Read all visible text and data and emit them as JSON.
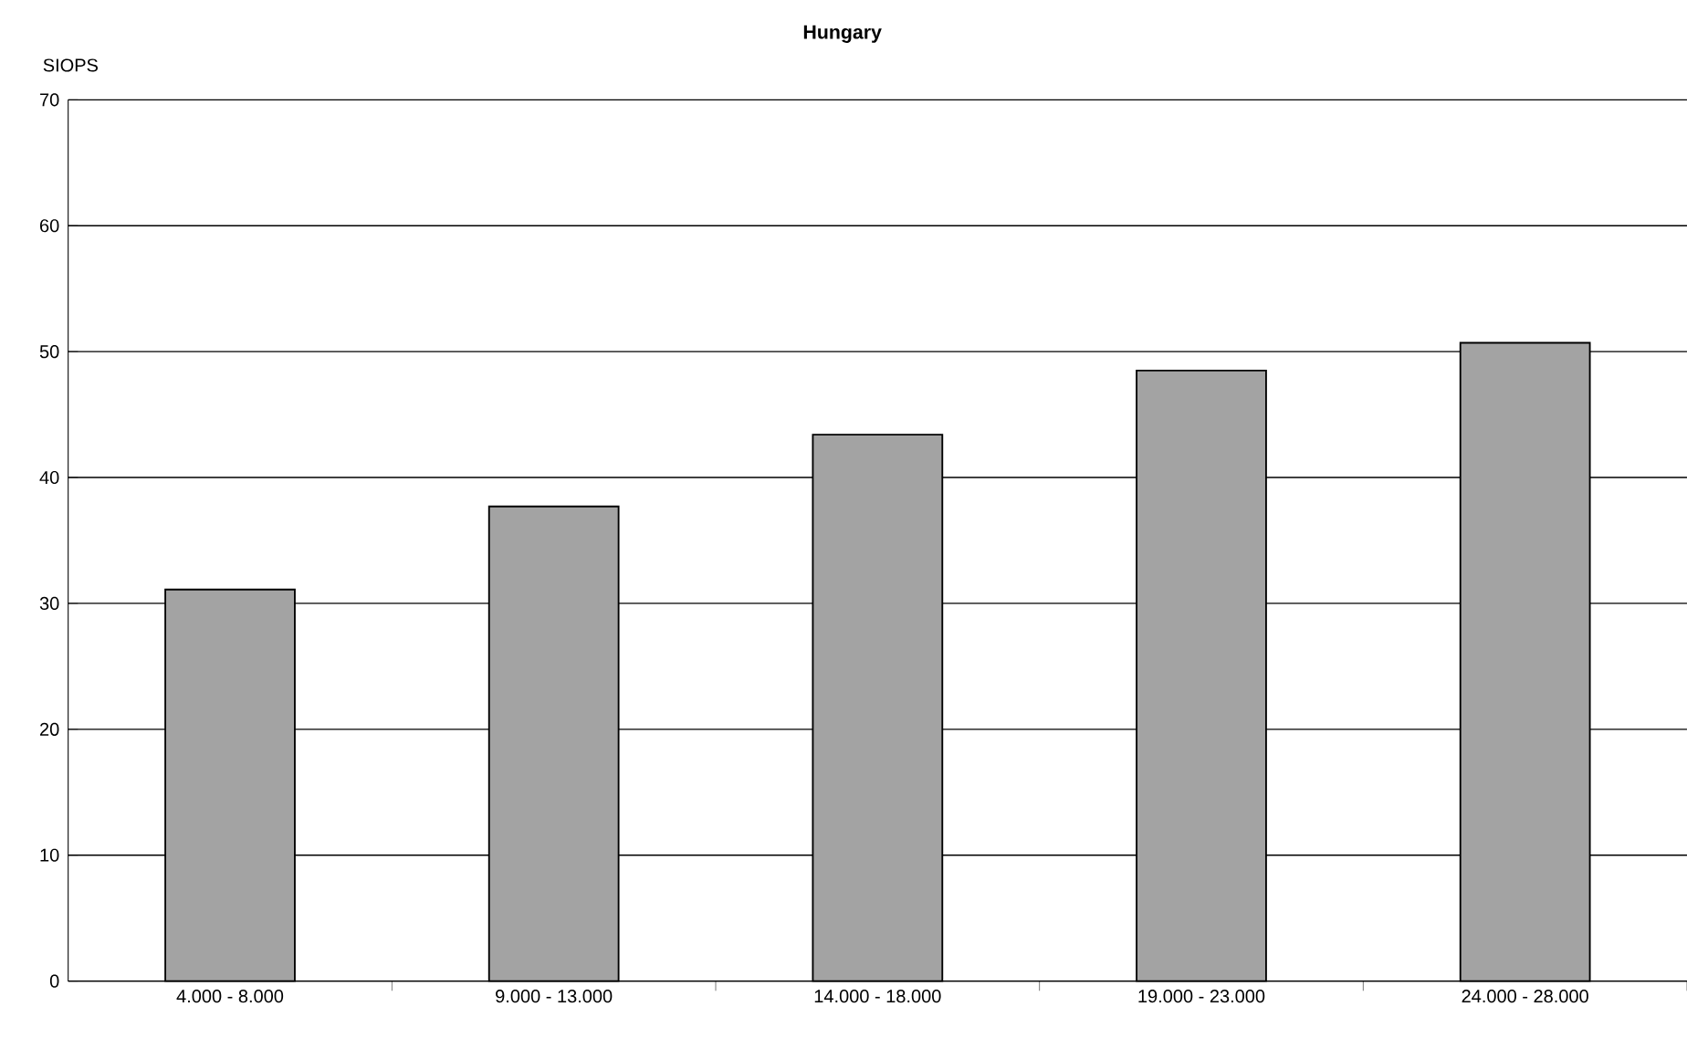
{
  "chart_data": {
    "type": "bar",
    "title": "Hungary",
    "ylabel": "SIOPS",
    "categories": [
      "4.000 - 8.000",
      "9.000 - 13.000",
      "14.000 - 18.000",
      "19.000 - 23.000",
      "24.000 - 28.000"
    ],
    "values": [
      31.1,
      37.7,
      43.4,
      48.5,
      50.7
    ],
    "color": "#a3a3a3",
    "ylim": [
      0,
      70
    ],
    "yticks": [
      0,
      10,
      20,
      30,
      40,
      50,
      60,
      70
    ],
    "grid": "y",
    "legend": false
  }
}
